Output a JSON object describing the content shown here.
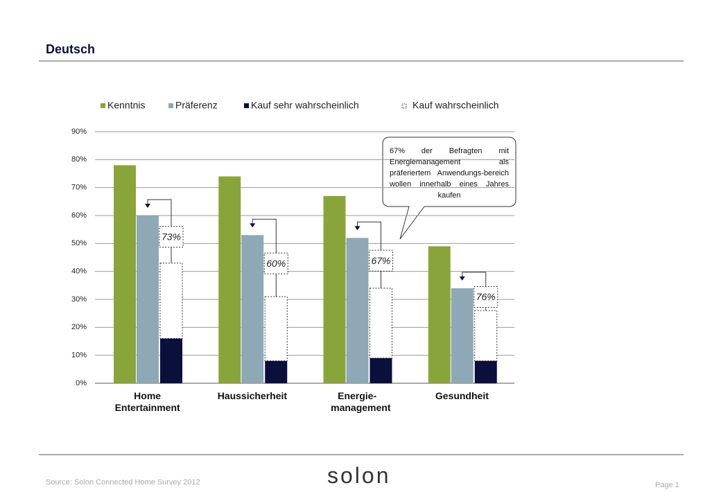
{
  "page": {
    "title": "Deutsch",
    "source": "Source: Solon Connected Home Survey 2012",
    "logo": "solon",
    "page_label": "Page 1"
  },
  "chart_data": {
    "type": "bar",
    "categories": [
      "Home Entertainment",
      "Haussicherheit",
      "Energie-management",
      "Gesundheit"
    ],
    "series": [
      {
        "name": "Kenntnis",
        "color": "#8aa43c",
        "values": [
          78,
          74,
          67,
          49
        ]
      },
      {
        "name": "Präferenz",
        "color": "#8ea9b5",
        "values": [
          60,
          53,
          52,
          34
        ]
      },
      {
        "name": "Kauf sehr wahrscheinlich",
        "color": "#0a0f3c",
        "values": [
          16,
          8,
          9,
          8
        ]
      },
      {
        "name": "Kauf wahrscheinlich",
        "color": "#ffffff",
        "values": [
          27,
          23,
          25,
          18
        ]
      }
    ],
    "annotations": [
      "73%",
      "60%",
      "67%",
      "76%"
    ],
    "callout": "67% der Befragten mit Energiemanagement als präferiertem Anwendungs-bereich wollen innerhalb eines Jahres kaufen",
    "ylim": [
      0,
      90
    ],
    "yticks": [
      {
        "value": 0,
        "label": "0%"
      },
      {
        "value": 10,
        "label": "10%"
      },
      {
        "value": 20,
        "label": "20%"
      },
      {
        "value": 30,
        "label": "30%"
      },
      {
        "value": 40,
        "label": "40%"
      },
      {
        "value": 50,
        "label": "50%"
      },
      {
        "value": 60,
        "label": "60%"
      },
      {
        "value": 70,
        "label": "70%"
      },
      {
        "value": 80,
        "label": "80%"
      },
      {
        "value": 90,
        "label": "90%"
      }
    ],
    "grid": true
  }
}
